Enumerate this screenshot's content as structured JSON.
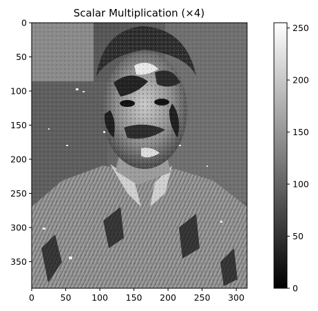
{
  "chart_data": {
    "type": "heatmap",
    "title": "Scalar Multiplication (×4)",
    "xlabel": "",
    "ylabel": "",
    "image_width": 316,
    "image_height": 389,
    "xlim": [
      0,
      316
    ],
    "ylim": [
      389,
      0
    ],
    "x_ticks": [
      0,
      50,
      100,
      150,
      200,
      250,
      300
    ],
    "y_ticks": [
      0,
      50,
      100,
      150,
      200,
      250,
      300,
      350
    ],
    "colormap": "gray",
    "colorbar": {
      "vmin": 0,
      "vmax": 255,
      "ticks": [
        0,
        50,
        100,
        150,
        200,
        250
      ]
    },
    "image_description_colors": {
      "background": "#5a5a5a",
      "wall_left": "#6e6e6e",
      "shirt": "#8a8a8a",
      "hair": "#3a3a3a",
      "face": "#a8a8a8"
    }
  }
}
